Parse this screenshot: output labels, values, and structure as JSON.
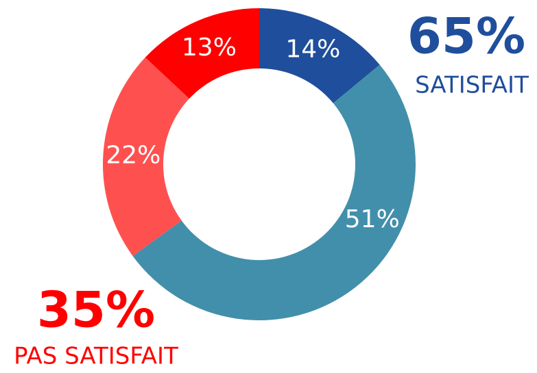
{
  "chart_data": {
    "type": "donut",
    "values": [
      14,
      51,
      22,
      13
    ],
    "value_labels": [
      "14%",
      "51%",
      "22%",
      "13%"
    ],
    "colors": [
      "#1f4e9c",
      "#428fab",
      "#ff5050",
      "#ff0000"
    ],
    "annotations": [
      {
        "text": "65%",
        "color": "#1f4e9c"
      },
      {
        "text": "SATISFAIT",
        "color": "#1f4e9c"
      },
      {
        "text": "35%",
        "color": "#ff0000"
      },
      {
        "text": "PAS SATISFAIT",
        "color": "#ff0000"
      }
    ]
  }
}
